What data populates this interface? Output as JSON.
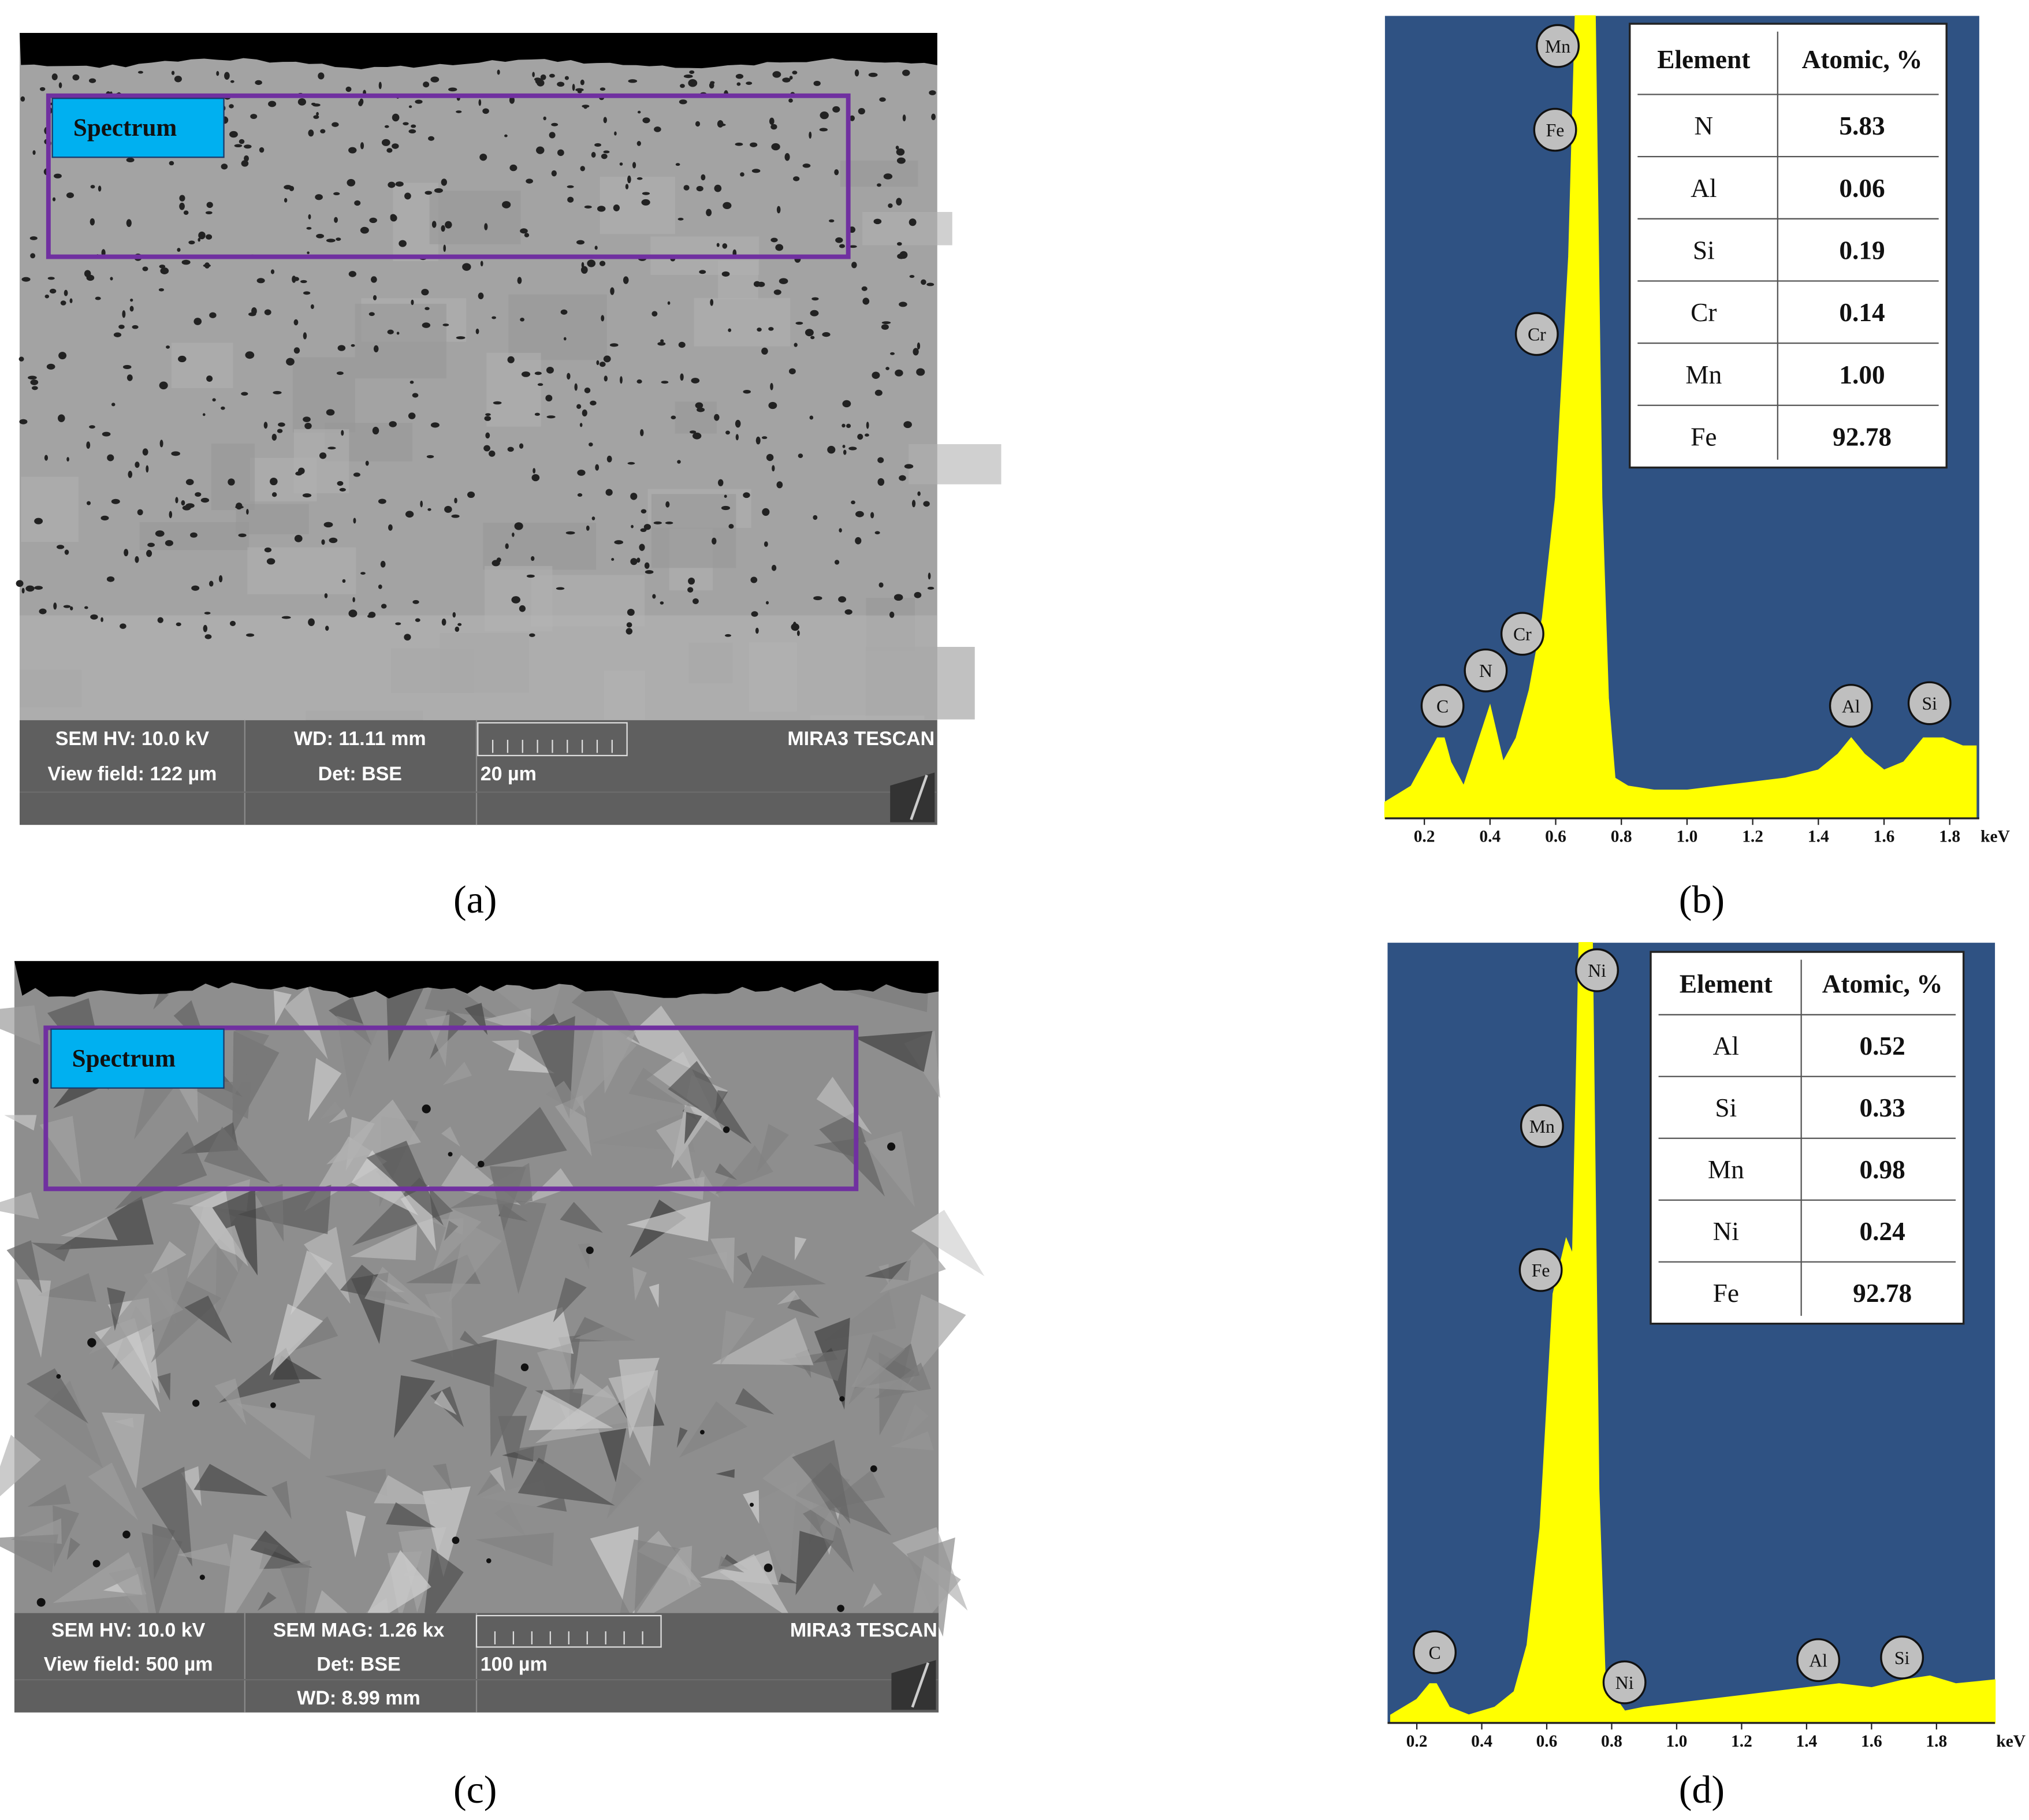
{
  "images": [
    {
      "spectrum_label": "Spectrum",
      "info": [
        "SEM HV: 10.0 kV",
        "WD: 11.11 mm",
        "MIRA3 TESCAN",
        "View field: 122 µm",
        "Det: BSE",
        "20 µm"
      ]
    },
    {
      "spectrum_label": "Spectrum",
      "info": [
        "SEM HV: 10.0 kV",
        "SEM MAG: 1.26 kx",
        "MIRA3 TESCAN",
        "View field: 500 µm",
        "Det: BSE",
        "100 µm",
        "WD: 8.99 mm"
      ]
    }
  ],
  "chart_data": [
    {
      "type": "area",
      "x_label": "keV",
      "x": [
        0.08,
        0.12,
        0.16,
        0.2,
        0.24,
        0.26,
        0.28,
        0.32,
        0.36,
        0.4,
        0.44,
        0.48,
        0.52,
        0.56,
        0.6,
        0.64,
        0.66,
        0.72,
        0.74,
        0.76,
        0.78,
        0.82,
        0.9,
        1.0,
        1.1,
        1.2,
        1.3,
        1.4,
        1.46,
        1.5,
        1.54,
        1.6,
        1.66,
        1.72,
        1.78,
        1.84,
        1.88
      ],
      "series": [
        {
          "color": "#ffff00",
          "values": [
            2,
            3,
            4,
            7,
            10,
            10,
            7,
            4,
            9,
            14,
            7,
            10,
            16,
            25,
            40,
            70,
            100,
            100,
            40,
            15,
            5,
            4,
            3.5,
            3.5,
            4,
            4.5,
            5,
            6,
            8,
            10,
            8,
            6,
            7,
            10,
            10,
            9,
            9
          ]
        }
      ],
      "xlim": [
        0.08,
        1.89
      ],
      "ylim": [
        0,
        100
      ],
      "xticks": [
        0.2,
        0.4,
        0.6,
        0.8,
        {
          "value": 1,
          "label": "1.0"
        },
        1.2,
        1.4,
        1.6,
        1.8
      ],
      "background": "#2f5283",
      "peaks": [
        "Mn",
        "Fe",
        "Cr",
        "Cr",
        "N",
        "C",
        "Al",
        "Si"
      ],
      "table": {
        "header": [
          "Element",
          "Atomic, %"
        ],
        "rows": [
          [
            "N",
            "5.83"
          ],
          [
            "Al",
            "0.06"
          ],
          [
            "Si",
            "0.19"
          ],
          [
            "Cr",
            "0.14"
          ],
          [
            "Mn",
            "1.00"
          ],
          [
            "Fe",
            "92.78"
          ]
        ]
      }
    },
    {
      "type": "area",
      "x_label": "keV",
      "x": [
        0.12,
        0.2,
        0.24,
        0.26,
        0.3,
        0.36,
        0.44,
        0.5,
        0.54,
        0.58,
        0.6,
        0.62,
        0.66,
        0.68,
        0.7,
        0.74,
        0.76,
        0.78,
        0.84,
        0.9,
        1.0,
        1.2,
        1.4,
        1.5,
        1.6,
        1.7,
        1.78,
        1.86,
        1.98
      ],
      "series": [
        {
          "color": "#ffff00",
          "values": [
            1,
            3,
            5,
            5,
            2,
            1,
            2,
            4,
            10,
            25,
            40,
            55,
            62,
            60,
            100,
            100,
            30,
            5,
            1.5,
            2,
            2.5,
            3.5,
            4.5,
            5,
            4.5,
            5.5,
            6,
            5,
            5.5
          ]
        }
      ],
      "xlim": [
        0.11,
        1.98
      ],
      "ylim": [
        0,
        100
      ],
      "xticks": [
        0.2,
        0.4,
        0.6,
        0.8,
        {
          "value": 1,
          "label": "1.0"
        },
        1.2,
        1.4,
        1.6,
        1.8
      ],
      "background": "#2f5283",
      "peaks": [
        "Ni",
        "Mn",
        "Fe",
        "C",
        "Ni",
        "Al",
        "Si"
      ],
      "table": {
        "header": [
          "Element",
          "Atomic, %"
        ],
        "rows": [
          [
            "Al",
            "0.52"
          ],
          [
            "Si",
            "0.33"
          ],
          [
            "Mn",
            "0.98"
          ],
          [
            "Ni",
            "0.24"
          ],
          [
            "Fe",
            "92.78"
          ]
        ]
      }
    }
  ],
  "captions": [
    "(a)",
    "(b)",
    "(c)",
    "(d)"
  ]
}
